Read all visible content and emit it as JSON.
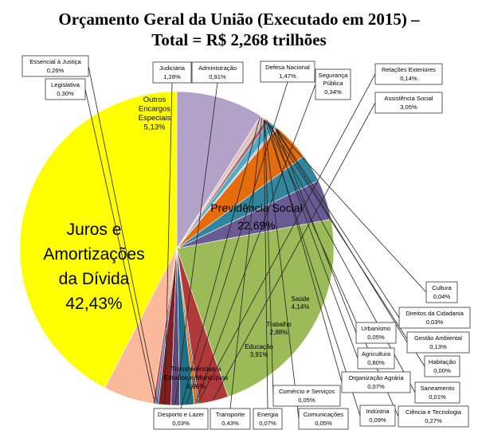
{
  "chart_data": {
    "type": "pie",
    "title_line1": "Orçamento Geral da União (Executado em 2015) –",
    "title_line2": "Total = R$ 2,268 trilhões",
    "slices": [
      {
        "name": "Juros e Amortizações da Dívida",
        "value": 42.43,
        "label": "42,43%",
        "color": "#ffff00"
      },
      {
        "name": "Outros Encargos Especiais",
        "value": 5.13,
        "label": "5,13%",
        "color": "#fab99b"
      },
      {
        "name": "Legislativa",
        "value": 0.3,
        "label": "0,30%",
        "color": "#c0504d"
      },
      {
        "name": "Essencial à Justiça",
        "value": 0.26,
        "label": "0,26%",
        "color": "#4f81bd"
      },
      {
        "name": "Judiciária",
        "value": 1.28,
        "label": "1,28%",
        "color": "#7f1f1f"
      },
      {
        "name": "Administração",
        "value": 0.91,
        "label": "0,91%",
        "color": "#5f497a"
      },
      {
        "name": "Defesa Nacional",
        "value": 1.47,
        "label": "1,47%",
        "color": "#1f6f87"
      },
      {
        "name": "Segurança Pública",
        "value": 0.34,
        "label": "0,34%",
        "color": "#e46c0a"
      },
      {
        "name": "Relações Exteriores",
        "value": 0.14,
        "label": "0,14%",
        "color": "#2c4d75"
      },
      {
        "name": "Assistência Social",
        "value": 3.05,
        "label": "3,05%",
        "color": "#b03a3a"
      },
      {
        "name": "Previdência Social",
        "value": 22.69,
        "label": "22,69%",
        "color": "#9bbb59"
      },
      {
        "name": "Saúde",
        "value": 4.14,
        "label": "4,14%",
        "color": "#6b5b95"
      },
      {
        "name": "Trabalho",
        "value": 2.88,
        "label": "2,88%",
        "color": "#31859c"
      },
      {
        "name": "Educação",
        "value": 3.91,
        "label": "3,91%",
        "color": "#e46c0a"
      },
      {
        "name": "Cultura",
        "value": 0.04,
        "label": "0,04%",
        "color": "#95b3d7"
      },
      {
        "name": "Direitos da Cidadania",
        "value": 0.03,
        "label": "0,03%",
        "color": "#d99694"
      },
      {
        "name": "Urbanismo",
        "value": 0.05,
        "label": "0,05%",
        "color": "#c3d69b"
      },
      {
        "name": "Gestão Ambiental",
        "value": 0.13,
        "label": "0,13%",
        "color": "#b2a1c7"
      },
      {
        "name": "Agricultura",
        "value": 0.8,
        "label": "0,80%",
        "color": "#4bacc6"
      },
      {
        "name": "Habitação",
        "value": 0.0,
        "label": "0,00%",
        "color": "#f79646"
      },
      {
        "name": "Organização Agrária",
        "value": 0.07,
        "label": "0,07%",
        "color": "#8064a2"
      },
      {
        "name": "Saneamento",
        "value": 0.01,
        "label": "0,01%",
        "color": "#9bbb59"
      },
      {
        "name": "Ciência e Tecnologia",
        "value": 0.27,
        "label": "0,27%",
        "color": "#c0504d"
      },
      {
        "name": "Indústria",
        "value": 0.09,
        "label": "0,09%",
        "color": "#4f81bd"
      },
      {
        "name": "Comércio e Serviços",
        "value": 0.05,
        "label": "0,05%",
        "color": "#f2dcdb"
      },
      {
        "name": "Comunicações",
        "value": 0.05,
        "label": "0,05%",
        "color": "#938953"
      },
      {
        "name": "Energia",
        "value": 0.07,
        "label": "0,07%",
        "color": "#77933c"
      },
      {
        "name": "Transporte",
        "value": 0.43,
        "label": "0,43%",
        "color": "#e6b9b8"
      },
      {
        "name": "Desporto e Lazer",
        "value": 0.03,
        "label": "0,03%",
        "color": "#ccc1da"
      },
      {
        "name": "Transferências a Estados e Municípios",
        "value": 8.96,
        "label": "8,96%",
        "color": "#b3a2c7"
      }
    ]
  }
}
